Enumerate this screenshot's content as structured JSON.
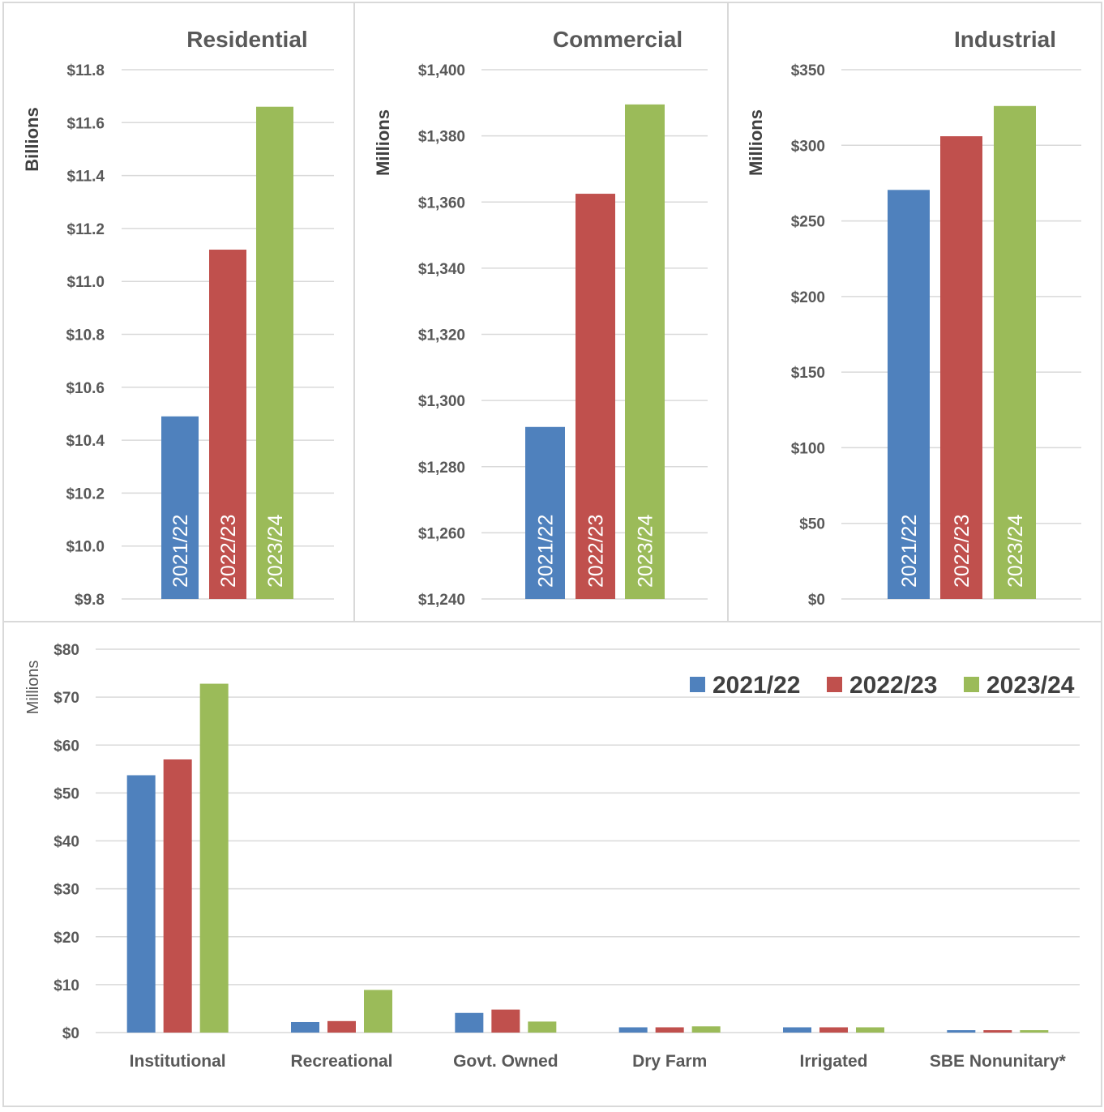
{
  "colors": {
    "series": [
      "#4F81BD",
      "#C0504D",
      "#9BBB59"
    ],
    "grid": "#D9D9D9",
    "text": "#595959",
    "border": "#D9D9D9"
  },
  "chart_data": [
    {
      "type": "bar",
      "title": "Residential",
      "ylabel": "Billions",
      "categories": [
        "2021/22",
        "2022/23",
        "2023/24"
      ],
      "values": [
        10.49,
        11.12,
        11.66
      ],
      "ylim": [
        9.8,
        11.8
      ],
      "ticks": [
        "$9.8",
        "$10.0",
        "$10.2",
        "$10.4",
        "$10.6",
        "$10.8",
        "$11.0",
        "$11.2",
        "$11.4",
        "$11.6",
        "$11.8"
      ],
      "grid": true
    },
    {
      "type": "bar",
      "title": "Commercial",
      "ylabel": "Millions",
      "categories": [
        "2021/22",
        "2022/23",
        "2023/24"
      ],
      "values": [
        1292,
        1362.5,
        1389.5
      ],
      "ylim": [
        1240,
        1400
      ],
      "ticks": [
        "$1,240",
        "$1,260",
        "$1,280",
        "$1,300",
        "$1,320",
        "$1,340",
        "$1,360",
        "$1,380",
        "$1,400"
      ],
      "grid": true
    },
    {
      "type": "bar",
      "title": "Industrial",
      "ylabel": "Millions",
      "categories": [
        "2021/22",
        "2022/23",
        "2023/24"
      ],
      "values": [
        270.5,
        306,
        326
      ],
      "ylim": [
        0,
        350
      ],
      "ticks": [
        "$0",
        "$50",
        "$100",
        "$150",
        "$200",
        "$250",
        "$300",
        "$350"
      ],
      "grid": true
    },
    {
      "type": "bar",
      "title": "",
      "ylabel": "Millions",
      "categories": [
        "Institutional",
        "Recreational",
        "Govt. Owned",
        "Dry Farm",
        "Irrigated",
        "SBE Nonunitary*"
      ],
      "series": [
        {
          "name": "2021/22",
          "values": [
            53.7,
            2.2,
            4.1,
            1.1,
            1.1,
            0.5
          ]
        },
        {
          "name": "2022/23",
          "values": [
            57.0,
            2.4,
            4.8,
            1.1,
            1.1,
            0.5
          ]
        },
        {
          "name": "2023/24",
          "values": [
            72.8,
            8.9,
            2.3,
            1.3,
            1.1,
            0.5
          ]
        }
      ],
      "ylim": [
        0,
        80
      ],
      "ticks": [
        "$0",
        "$10",
        "$20",
        "$30",
        "$40",
        "$50",
        "$60",
        "$70",
        "$80"
      ],
      "legend": "top-right",
      "grid": true
    }
  ]
}
